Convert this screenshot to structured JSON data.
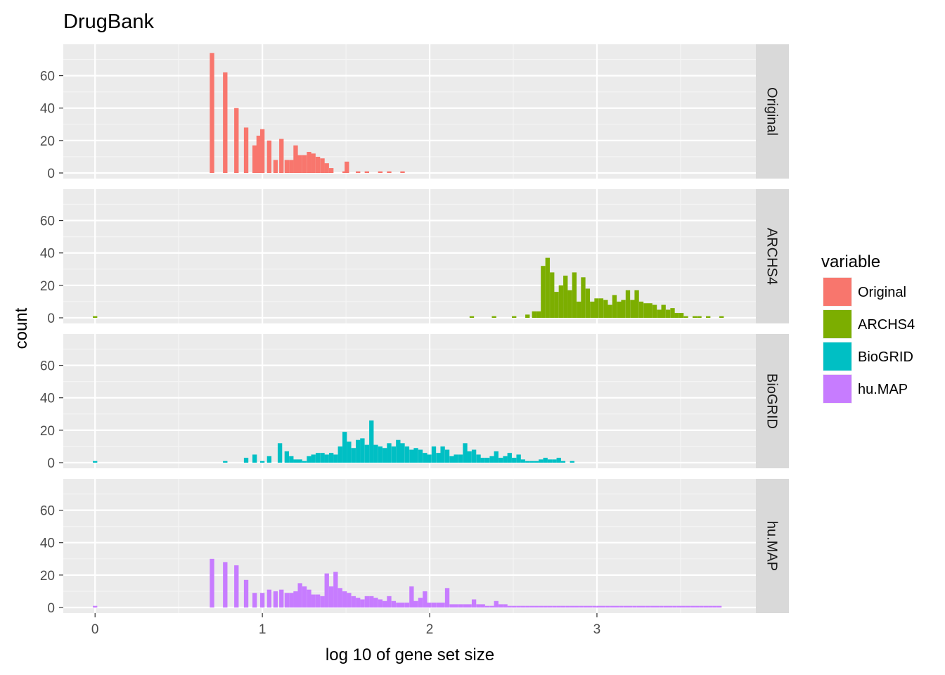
{
  "chart_data": {
    "type": "bar",
    "title": "DrugBank",
    "xlabel": "log 10 of gene set size",
    "ylabel": "count",
    "xlim": [
      -0.19,
      3.95
    ],
    "ylim": [
      0,
      75
    ],
    "x_ticks": [
      0,
      1,
      2,
      3
    ],
    "y_ticks": [
      0,
      20,
      40,
      60
    ],
    "bin_width": 0.0266,
    "grid": true,
    "facet_direction": "rows",
    "legend": {
      "title": "variable",
      "position": "right"
    },
    "series": [
      {
        "name": "Original",
        "color": "#F8766D",
        "bins": [
          [
            0.699,
            74
          ],
          [
            0.778,
            62
          ],
          [
            0.845,
            40
          ],
          [
            0.903,
            28
          ],
          [
            0.954,
            17
          ],
          [
            0.978,
            23
          ],
          [
            1.0,
            27
          ],
          [
            1.041,
            20
          ],
          [
            1.079,
            8
          ],
          [
            1.114,
            21
          ],
          [
            1.146,
            8
          ],
          [
            1.173,
            8
          ],
          [
            1.199,
            17
          ],
          [
            1.225,
            11
          ],
          [
            1.252,
            11
          ],
          [
            1.279,
            13
          ],
          [
            1.305,
            12
          ],
          [
            1.332,
            10
          ],
          [
            1.359,
            9
          ],
          [
            1.385,
            6
          ],
          [
            1.412,
            3
          ],
          [
            1.492,
            1
          ],
          [
            1.505,
            7
          ],
          [
            1.572,
            1
          ],
          [
            1.625,
            1
          ],
          [
            1.705,
            1
          ],
          [
            1.758,
            1
          ],
          [
            1.838,
            1
          ]
        ]
      },
      {
        "name": "ARCHS4",
        "color": "#7CAE00",
        "bins": [
          [
            0.0,
            1
          ],
          [
            2.252,
            1
          ],
          [
            2.385,
            1
          ],
          [
            2.505,
            1
          ],
          [
            2.585,
            2
          ],
          [
            2.625,
            4
          ],
          [
            2.652,
            4
          ],
          [
            2.678,
            32
          ],
          [
            2.705,
            37
          ],
          [
            2.732,
            28
          ],
          [
            2.758,
            16
          ],
          [
            2.785,
            20
          ],
          [
            2.812,
            26
          ],
          [
            2.838,
            17
          ],
          [
            2.865,
            28
          ],
          [
            2.892,
            10
          ],
          [
            2.918,
            25
          ],
          [
            2.945,
            18
          ],
          [
            2.972,
            10
          ],
          [
            2.998,
            12
          ],
          [
            3.025,
            12
          ],
          [
            3.052,
            11
          ],
          [
            3.078,
            8
          ],
          [
            3.105,
            14
          ],
          [
            3.132,
            10
          ],
          [
            3.158,
            11
          ],
          [
            3.185,
            17
          ],
          [
            3.212,
            11
          ],
          [
            3.238,
            17
          ],
          [
            3.265,
            10
          ],
          [
            3.292,
            9
          ],
          [
            3.318,
            9
          ],
          [
            3.345,
            8
          ],
          [
            3.372,
            5
          ],
          [
            3.398,
            8
          ],
          [
            3.425,
            5
          ],
          [
            3.452,
            6
          ],
          [
            3.478,
            3
          ],
          [
            3.505,
            3
          ],
          [
            3.532,
            1
          ],
          [
            3.585,
            1
          ],
          [
            3.612,
            1
          ],
          [
            3.665,
            1
          ],
          [
            3.745,
            1
          ]
        ]
      },
      {
        "name": "BioGRID",
        "color": "#00BFC4",
        "bins": [
          [
            0.0,
            1
          ],
          [
            0.778,
            1
          ],
          [
            0.903,
            3
          ],
          [
            0.954,
            5
          ],
          [
            1.0,
            1
          ],
          [
            1.041,
            4
          ],
          [
            1.105,
            12
          ],
          [
            1.146,
            7
          ],
          [
            1.173,
            4
          ],
          [
            1.199,
            2
          ],
          [
            1.225,
            2
          ],
          [
            1.252,
            1
          ],
          [
            1.279,
            4
          ],
          [
            1.305,
            5
          ],
          [
            1.332,
            6
          ],
          [
            1.359,
            6
          ],
          [
            1.385,
            5
          ],
          [
            1.412,
            6
          ],
          [
            1.438,
            5
          ],
          [
            1.465,
            10
          ],
          [
            1.492,
            19
          ],
          [
            1.518,
            13
          ],
          [
            1.545,
            9
          ],
          [
            1.572,
            14
          ],
          [
            1.598,
            15
          ],
          [
            1.625,
            11
          ],
          [
            1.652,
            26
          ],
          [
            1.678,
            11
          ],
          [
            1.705,
            10
          ],
          [
            1.732,
            9
          ],
          [
            1.758,
            12
          ],
          [
            1.785,
            10
          ],
          [
            1.812,
            14
          ],
          [
            1.838,
            12
          ],
          [
            1.865,
            10
          ],
          [
            1.892,
            8
          ],
          [
            1.918,
            9
          ],
          [
            1.945,
            8
          ],
          [
            1.972,
            6
          ],
          [
            1.998,
            5
          ],
          [
            2.025,
            10
          ],
          [
            2.052,
            6
          ],
          [
            2.078,
            10
          ],
          [
            2.105,
            8
          ],
          [
            2.132,
            4
          ],
          [
            2.158,
            5
          ],
          [
            2.185,
            5
          ],
          [
            2.212,
            12
          ],
          [
            2.238,
            7
          ],
          [
            2.265,
            8
          ],
          [
            2.292,
            5
          ],
          [
            2.318,
            3
          ],
          [
            2.345,
            3
          ],
          [
            2.372,
            4
          ],
          [
            2.398,
            7
          ],
          [
            2.425,
            3
          ],
          [
            2.452,
            4
          ],
          [
            2.478,
            6
          ],
          [
            2.505,
            3
          ],
          [
            2.532,
            5
          ],
          [
            2.558,
            2
          ],
          [
            2.585,
            1
          ],
          [
            2.612,
            1
          ],
          [
            2.638,
            1
          ],
          [
            2.665,
            2
          ],
          [
            2.692,
            3
          ],
          [
            2.718,
            2
          ],
          [
            2.745,
            2
          ],
          [
            2.772,
            3
          ],
          [
            2.798,
            1
          ],
          [
            2.852,
            1
          ]
        ]
      },
      {
        "name": "hu.MAP",
        "color": "#C77CFF",
        "bins": [
          [
            0.0,
            1
          ],
          [
            0.699,
            30
          ],
          [
            0.778,
            28
          ],
          [
            0.845,
            26
          ],
          [
            0.903,
            17
          ],
          [
            0.954,
            9
          ],
          [
            1.0,
            9
          ],
          [
            1.041,
            11
          ],
          [
            1.079,
            10
          ],
          [
            1.114,
            11
          ],
          [
            1.146,
            9
          ],
          [
            1.173,
            9
          ],
          [
            1.199,
            10
          ],
          [
            1.225,
            15
          ],
          [
            1.252,
            13
          ],
          [
            1.279,
            11
          ],
          [
            1.305,
            8
          ],
          [
            1.332,
            8
          ],
          [
            1.359,
            7
          ],
          [
            1.385,
            21
          ],
          [
            1.412,
            13
          ],
          [
            1.438,
            22
          ],
          [
            1.465,
            12
          ],
          [
            1.492,
            10
          ],
          [
            1.518,
            9
          ],
          [
            1.545,
            7
          ],
          [
            1.572,
            6
          ],
          [
            1.598,
            5
          ],
          [
            1.625,
            7
          ],
          [
            1.652,
            7
          ],
          [
            1.678,
            6
          ],
          [
            1.705,
            5
          ],
          [
            1.732,
            4
          ],
          [
            1.758,
            7
          ],
          [
            1.785,
            4
          ],
          [
            1.812,
            3
          ],
          [
            1.838,
            3
          ],
          [
            1.865,
            3
          ],
          [
            1.892,
            13
          ],
          [
            1.918,
            4
          ],
          [
            1.945,
            6
          ],
          [
            1.972,
            10
          ],
          [
            1.998,
            3
          ],
          [
            2.025,
            3
          ],
          [
            2.052,
            3
          ],
          [
            2.078,
            3
          ],
          [
            2.105,
            12
          ],
          [
            2.132,
            2
          ],
          [
            2.158,
            2
          ],
          [
            2.185,
            2
          ],
          [
            2.212,
            2
          ],
          [
            2.238,
            2
          ],
          [
            2.265,
            5
          ],
          [
            2.292,
            2
          ],
          [
            2.318,
            2
          ],
          [
            2.345,
            1
          ],
          [
            2.372,
            1
          ],
          [
            2.398,
            4
          ],
          [
            2.425,
            2
          ],
          [
            2.452,
            2
          ],
          [
            2.478,
            1
          ],
          [
            2.505,
            1
          ],
          [
            2.532,
            1
          ],
          [
            2.558,
            1
          ],
          [
            2.585,
            1
          ],
          [
            2.612,
            1
          ],
          [
            2.638,
            1
          ],
          [
            2.665,
            1
          ],
          [
            2.692,
            1
          ],
          [
            2.718,
            1
          ],
          [
            2.745,
            1
          ],
          [
            2.772,
            1
          ],
          [
            2.798,
            1
          ],
          [
            2.825,
            1
          ],
          [
            2.852,
            1
          ],
          [
            2.878,
            1
          ],
          [
            2.905,
            1
          ],
          [
            2.932,
            1
          ],
          [
            2.958,
            1
          ],
          [
            2.985,
            1
          ],
          [
            3.012,
            1
          ],
          [
            3.038,
            1
          ],
          [
            3.065,
            1
          ],
          [
            3.092,
            1
          ],
          [
            3.118,
            1
          ],
          [
            3.145,
            1
          ],
          [
            3.172,
            1
          ],
          [
            3.198,
            1
          ],
          [
            3.225,
            1
          ],
          [
            3.252,
            1
          ],
          [
            3.278,
            1
          ],
          [
            3.305,
            1
          ],
          [
            3.332,
            1
          ],
          [
            3.358,
            1
          ],
          [
            3.385,
            1
          ],
          [
            3.412,
            1
          ],
          [
            3.438,
            1
          ],
          [
            3.465,
            1
          ],
          [
            3.492,
            1
          ],
          [
            3.518,
            1
          ],
          [
            3.545,
            1
          ],
          [
            3.572,
            1
          ],
          [
            3.598,
            1
          ],
          [
            3.625,
            1
          ],
          [
            3.652,
            1
          ],
          [
            3.678,
            1
          ],
          [
            3.705,
            1
          ],
          [
            3.732,
            1
          ]
        ]
      }
    ]
  }
}
